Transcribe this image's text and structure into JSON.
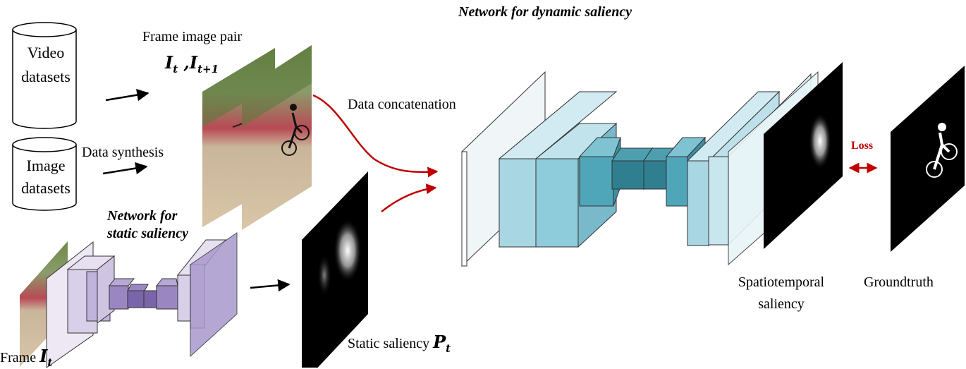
{
  "title_dynamic": "Network for dynamic saliency",
  "title_static_line1": "Network for",
  "title_static_line2": "static saliency",
  "video_datasets_line1": "Video",
  "video_datasets_line2": "datasets",
  "image_datasets_line1": "Image",
  "image_datasets_line2": "datasets",
  "data_synthesis": "Data synthesis",
  "frame_pair_label": "Frame image pair",
  "frame_pair_math": {
    "a": "I",
    "a_sub": "t",
    "sep": " ,",
    "b": "I",
    "b_sub": "t+1"
  },
  "data_concatenation": "Data concatenation",
  "static_saliency_label": "Static saliency",
  "static_saliency_math": {
    "sym": "P",
    "sub": "t"
  },
  "frame_label": "Frame",
  "frame_math": {
    "sym": "I",
    "sub": "t"
  },
  "spatiotemporal_line1": "Spatiotemporal",
  "spatiotemporal_line2": "saliency",
  "groundtruth": "Groundtruth",
  "loss": "Loss",
  "colors": {
    "arrow_red": "#c00000",
    "dynamic_net": "#5fb2c8",
    "static_net": "#9a87c2"
  }
}
